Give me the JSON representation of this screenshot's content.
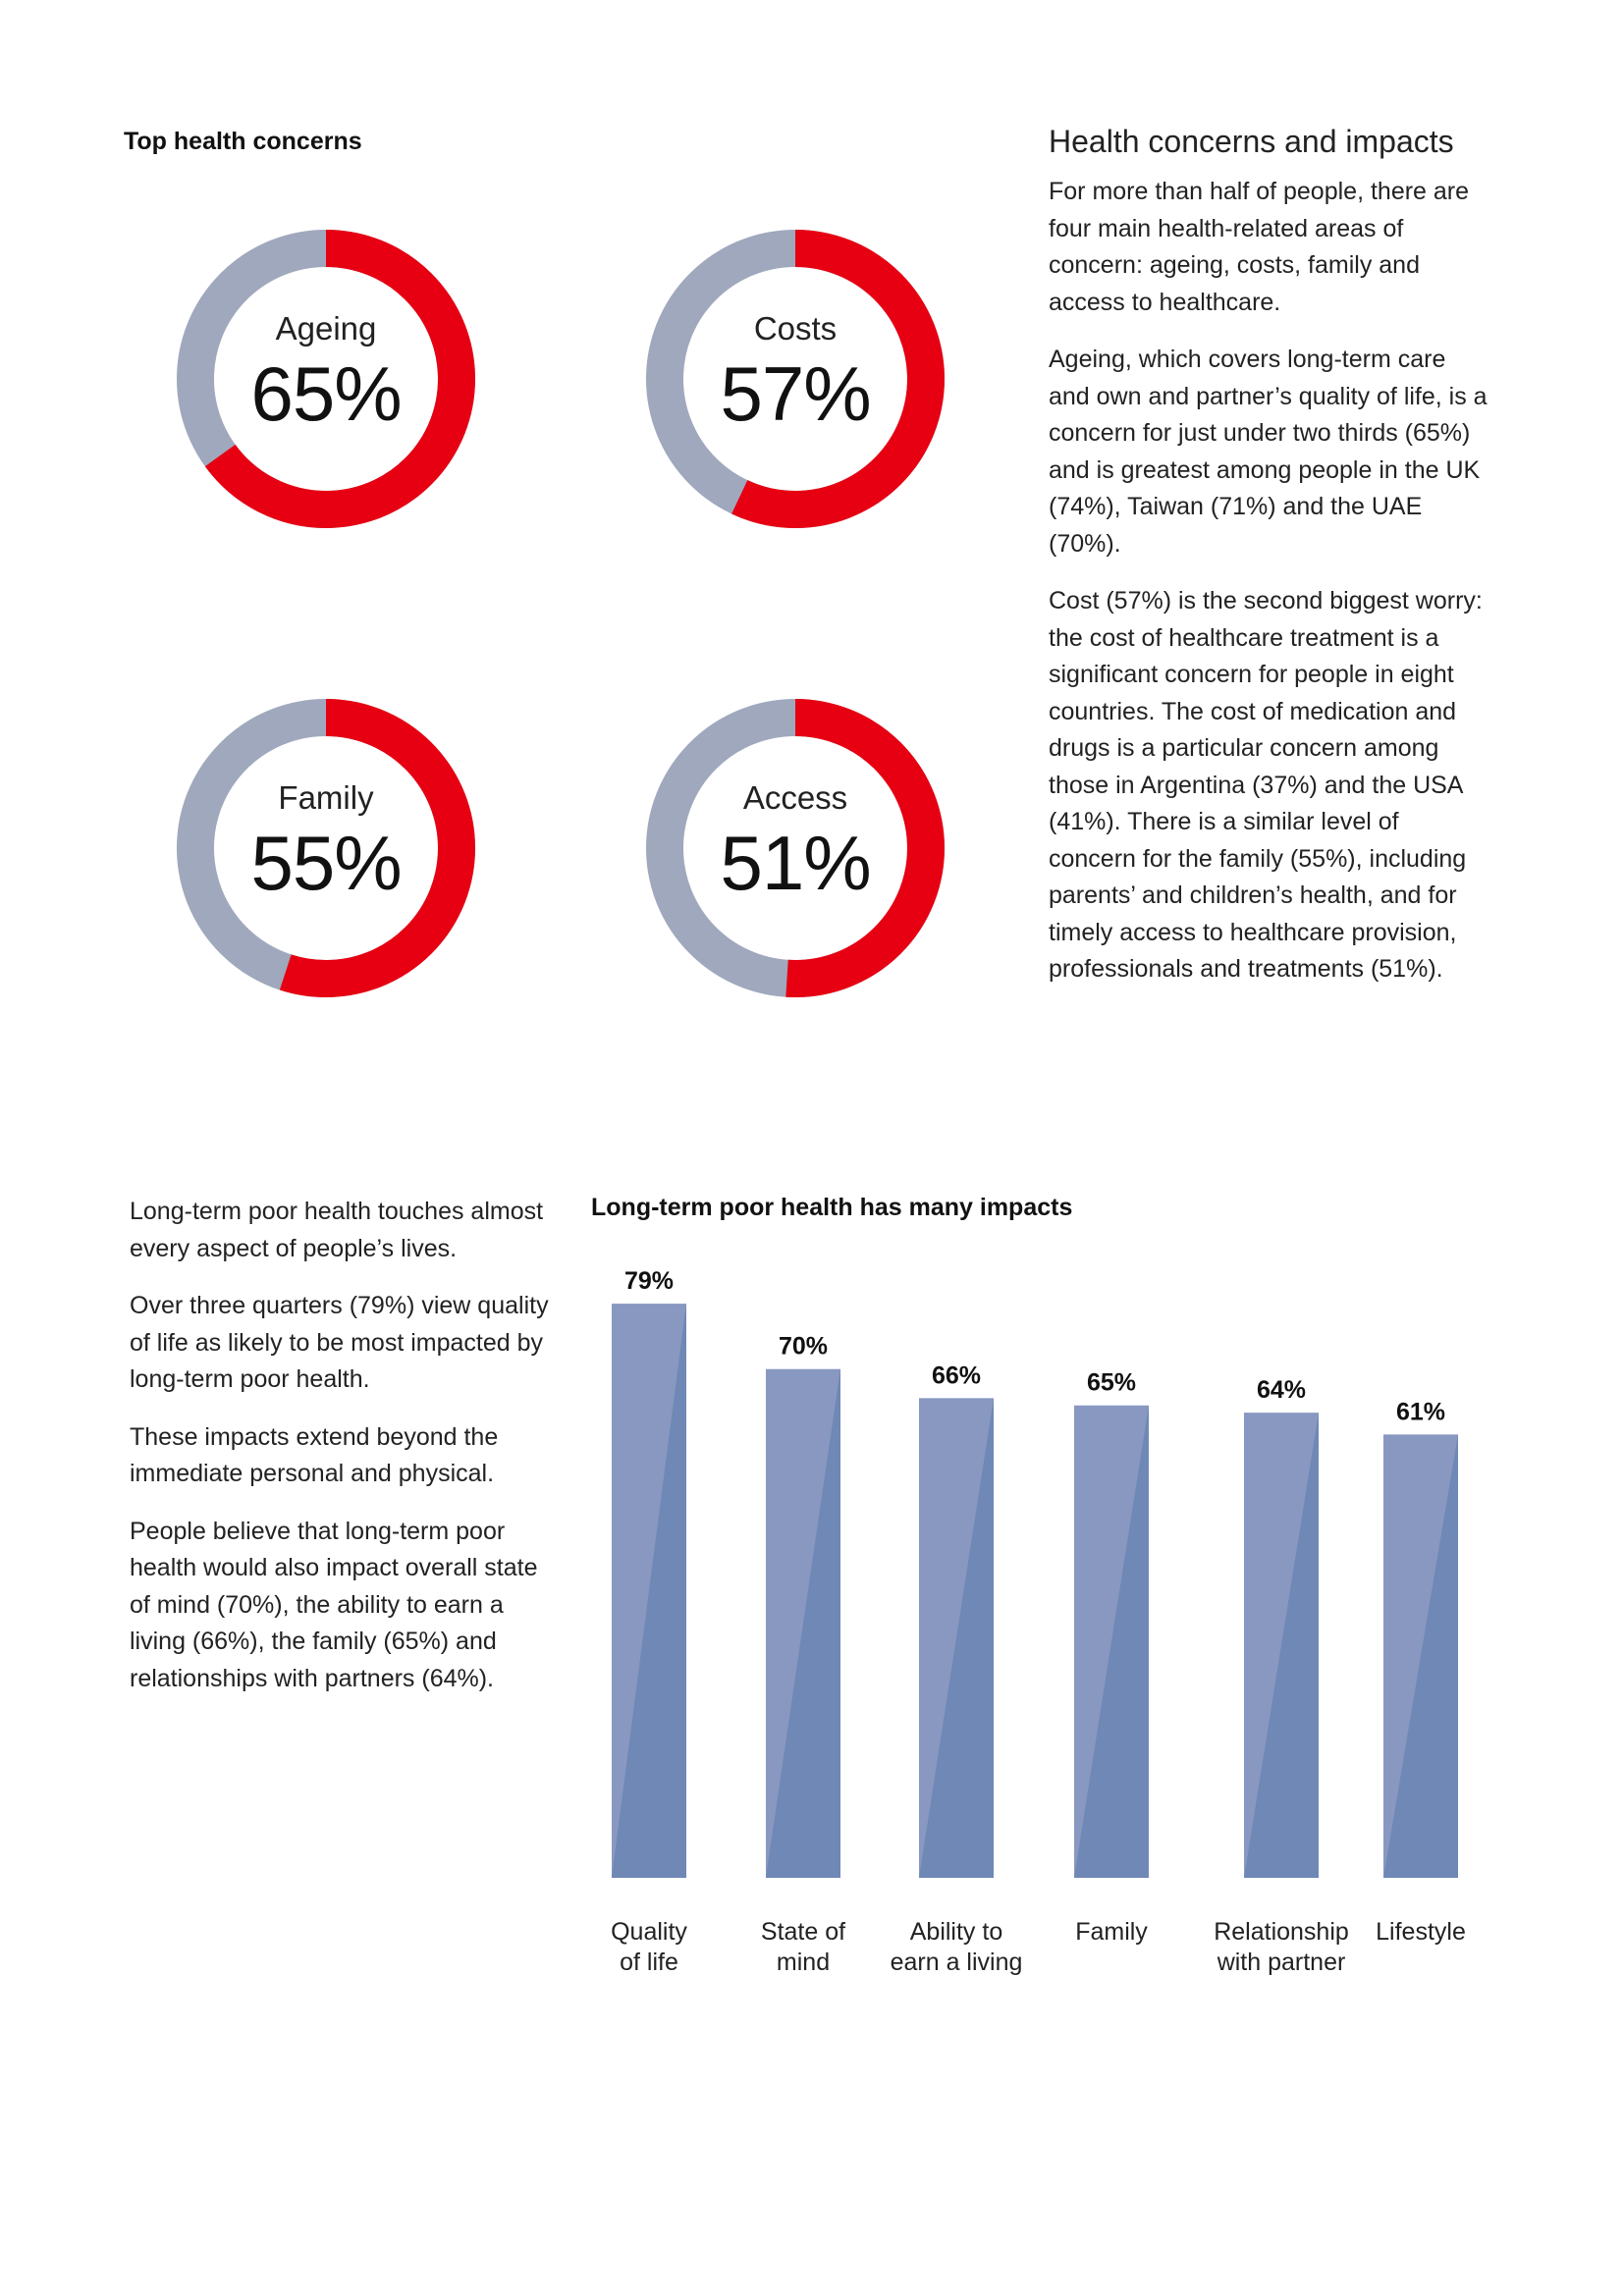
{
  "donut_section": {
    "title": "Top health concerns"
  },
  "colors": {
    "donut_value": "#e60012",
    "donut_rest": "#a0a8bd",
    "bar_light": "#8898c1",
    "bar_dark": "#6f88b5"
  },
  "chart_data": [
    {
      "type": "pie",
      "title": "Top health concerns",
      "variant": "donut",
      "slices": [
        {
          "label": "Ageing",
          "value": 65,
          "display": "65%"
        },
        {
          "label": "Costs",
          "value": 57,
          "display": "57%"
        },
        {
          "label": "Family",
          "value": 55,
          "display": "55%"
        },
        {
          "label": "Access",
          "value": 51,
          "display": "51%"
        }
      ]
    },
    {
      "type": "bar",
      "title": "Long-term poor health has many impacts",
      "categories": [
        [
          "Quality",
          "of life"
        ],
        [
          "State of",
          "mind"
        ],
        [
          "Ability to",
          "earn a living"
        ],
        [
          "Family"
        ],
        [
          "Relationship",
          "with partner"
        ],
        [
          "Lifestyle"
        ]
      ],
      "values": [
        79,
        70,
        66,
        65,
        64,
        61
      ],
      "data_labels": [
        "79%",
        "70%",
        "66%",
        "65%",
        "64%",
        "61%"
      ],
      "ylim": [
        0,
        100
      ],
      "grid": false,
      "xlabel": "",
      "ylabel": ""
    }
  ],
  "right_text": {
    "heading": "Health concerns and impacts",
    "paragraphs": [
      "For more than half of people, there are four main health-related areas of concern: ageing, costs, family and access to healthcare.",
      "Ageing, which covers long-term care and own and partner’s quality of life, is a concern for just under two thirds (65%) and is greatest among people in the UK (74%), Taiwan (71%) and the UAE (70%).",
      "Cost (57%) is the second biggest worry: the cost of healthcare treatment is a significant concern for people in eight countries.  The cost of medication and drugs is a particular concern among those in Argentina (37%) and the USA (41%).  There is a similar level of concern for the family (55%), including parents’ and children’s health, and for timely access to healthcare provision, professionals and treatments (51%)."
    ]
  },
  "left_text": {
    "paragraphs": [
      "Long-term poor health touches almost every aspect of people’s lives.",
      "Over three quarters (79%) view quality of life as likely to be most impacted by long-term poor health.",
      "These impacts extend beyond the immediate personal and physical.",
      "People believe that long-term poor health would also impact overall state of mind (70%), the ability to earn a living (66%), the family (65%) and relationships with partners (64%)."
    ]
  }
}
